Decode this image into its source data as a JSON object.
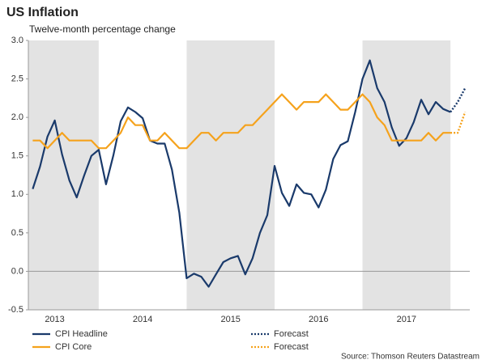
{
  "chart_data": {
    "type": "line",
    "title": "US Inflation",
    "subtitle": "Twelve-month percentage change",
    "source": "Source: Thomson Reuters Datastream",
    "xlim": [
      2013.2,
      2018.22
    ],
    "xticks": [
      {
        "value": 2013.5,
        "label": "2013"
      },
      {
        "value": 2014.5,
        "label": "2014"
      },
      {
        "value": 2015.5,
        "label": "2015"
      },
      {
        "value": 2016.5,
        "label": "2016"
      },
      {
        "value": 2017.5,
        "label": "2017"
      }
    ],
    "shading": [
      [
        2013,
        2014
      ],
      [
        2015,
        2016
      ],
      [
        2017,
        2018
      ]
    ],
    "shading_color": "#e3e3e3",
    "ylim": [
      -0.5,
      3.0
    ],
    "yticks": [
      {
        "value": -0.5,
        "label": "-0.5"
      },
      {
        "value": 0,
        "label": "0.0"
      },
      {
        "value": 0.5,
        "label": "0.5"
      },
      {
        "value": 1,
        "label": "1.0"
      },
      {
        "value": 1.5,
        "label": "1.5"
      },
      {
        "value": 2,
        "label": "2.0"
      },
      {
        "value": 2.5,
        "label": "2.5"
      },
      {
        "value": 3,
        "label": "3.0"
      }
    ],
    "x": [
      2013.25,
      2013.333,
      2013.417,
      2013.5,
      2013.583,
      2013.667,
      2013.75,
      2013.833,
      2013.917,
      2014.0,
      2014.083,
      2014.167,
      2014.25,
      2014.333,
      2014.417,
      2014.5,
      2014.583,
      2014.667,
      2014.75,
      2014.833,
      2014.917,
      2015.0,
      2015.083,
      2015.167,
      2015.25,
      2015.333,
      2015.417,
      2015.5,
      2015.583,
      2015.667,
      2015.75,
      2015.833,
      2015.917,
      2016.0,
      2016.083,
      2016.167,
      2016.25,
      2016.333,
      2016.417,
      2016.5,
      2016.583,
      2016.667,
      2016.75,
      2016.833,
      2016.917,
      2017.0,
      2017.083,
      2017.167,
      2017.25,
      2017.333,
      2017.417,
      2017.5,
      2017.583,
      2017.667,
      2017.75,
      2017.833,
      2017.917,
      2018.0
    ],
    "series": [
      {
        "name": "CPI Headline",
        "color": "#1a3a6b",
        "dashed": false,
        "values": [
          1.07,
          1.36,
          1.75,
          1.96,
          1.52,
          1.18,
          0.96,
          1.24,
          1.5,
          1.58,
          1.13,
          1.51,
          1.95,
          2.13,
          2.07,
          1.99,
          1.7,
          1.66,
          1.66,
          1.32,
          0.76,
          -0.09,
          -0.03,
          -0.07,
          -0.2,
          -0.04,
          0.12,
          0.17,
          0.2,
          -0.04,
          0.17,
          0.5,
          0.73,
          1.37,
          1.02,
          0.85,
          1.13,
          1.02,
          1.0,
          0.83,
          1.06,
          1.46,
          1.64,
          1.69,
          2.07,
          2.5,
          2.74,
          2.38,
          2.2,
          1.87,
          1.63,
          1.73,
          1.94,
          2.23,
          2.04,
          2.2,
          2.11,
          2.07
        ]
      },
      {
        "name": "CPI Core",
        "color": "#f5a21c",
        "dashed": false,
        "values": [
          1.7,
          1.7,
          1.6,
          1.7,
          1.8,
          1.7,
          1.7,
          1.7,
          1.7,
          1.6,
          1.6,
          1.7,
          1.8,
          2.0,
          1.9,
          1.9,
          1.7,
          1.7,
          1.8,
          1.7,
          1.6,
          1.6,
          1.7,
          1.8,
          1.8,
          1.7,
          1.8,
          1.8,
          1.8,
          1.9,
          1.9,
          2.0,
          2.1,
          2.2,
          2.3,
          2.2,
          2.1,
          2.2,
          2.2,
          2.2,
          2.3,
          2.2,
          2.1,
          2.1,
          2.2,
          2.3,
          2.2,
          2.0,
          1.9,
          1.7,
          1.7,
          1.7,
          1.7,
          1.7,
          1.8,
          1.7,
          1.8,
          1.8
        ]
      },
      {
        "name": "Forecast",
        "color": "#1a3a6b",
        "dashed": true,
        "x": [
          2018.0,
          2018.083,
          2018.167
        ],
        "values": [
          2.07,
          2.2,
          2.38
        ]
      },
      {
        "name": "Forecast",
        "color": "#f5a21c",
        "dashed": true,
        "x": [
          2018.0,
          2018.083,
          2018.167
        ],
        "values": [
          1.8,
          1.8,
          2.07
        ]
      }
    ]
  }
}
